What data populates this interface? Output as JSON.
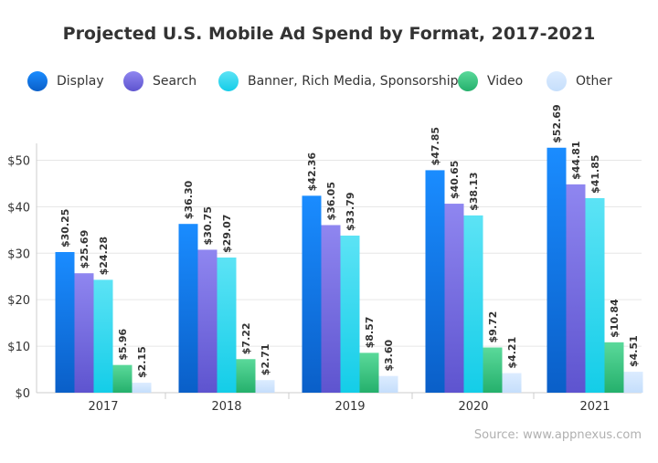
{
  "chart_data": {
    "type": "bar",
    "title": "Projected U.S. Mobile Ad Spend by Format, 2017-2021",
    "categories": [
      "2017",
      "2018",
      "2019",
      "2020",
      "2021"
    ],
    "series": [
      {
        "name": "Display",
        "values": [
          30.25,
          36.3,
          42.36,
          47.85,
          52.69
        ],
        "labels": [
          "$30.25",
          "$36.30",
          "$42.36",
          "$47.85",
          "$52.69"
        ],
        "color_top": "#1a8cff",
        "color_bottom": "#0a5fc8"
      },
      {
        "name": "Search",
        "values": [
          25.69,
          30.75,
          36.05,
          40.65,
          44.81
        ],
        "labels": [
          "$25.69",
          "$30.75",
          "$36.05",
          "$40.65",
          "$44.81"
        ],
        "color_top": "#8f86f0",
        "color_bottom": "#5e54cf"
      },
      {
        "name": "Banner, Rich Media, Sponsorship",
        "values": [
          24.28,
          29.07,
          33.79,
          38.13,
          41.85
        ],
        "labels": [
          "$24.28",
          "$29.07",
          "$33.79",
          "$38.13",
          "$41.85"
        ],
        "color_top": "#5ce3f5",
        "color_bottom": "#14cde8"
      },
      {
        "name": "Video",
        "values": [
          5.96,
          7.22,
          8.57,
          9.72,
          10.84
        ],
        "labels": [
          "$5.96",
          "$7.22",
          "$8.57",
          "$9.72",
          "$10.84"
        ],
        "color_top": "#5ad99a",
        "color_bottom": "#25b06c"
      },
      {
        "name": "Other",
        "values": [
          2.15,
          2.71,
          3.6,
          4.21,
          4.51
        ],
        "labels": [
          "$2.15",
          "$2.71",
          "$3.60",
          "$4.21",
          "$4.51"
        ],
        "color_top": "#dcecff",
        "color_bottom": "#c5defb"
      }
    ],
    "ylim": [
      0,
      55
    ],
    "yticks": [
      0,
      10,
      20,
      30,
      40,
      50
    ],
    "ytick_labels": [
      "$0",
      "$10",
      "$20",
      "$30",
      "$40",
      "$50"
    ],
    "grid": true,
    "legend_position": "top",
    "source": "Source: www.appnexus.com"
  }
}
